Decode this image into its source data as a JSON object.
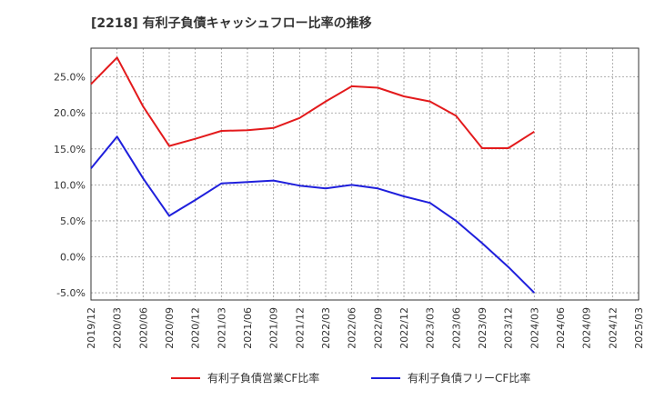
{
  "chart_data": {
    "type": "line",
    "title": "[2218]  有利子負債キャッシュフロー比率の推移",
    "x": [
      "2019/12",
      "2020/03",
      "2020/06",
      "2020/09",
      "2020/12",
      "2021/03",
      "2021/06",
      "2021/09",
      "2021/12",
      "2022/03",
      "2022/06",
      "2022/09",
      "2022/12",
      "2023/03",
      "2023/06",
      "2023/09",
      "2023/12",
      "2024/03",
      "2024/06",
      "2024/09",
      "2024/12",
      "2025/03"
    ],
    "ylim": [
      -6,
      29
    ],
    "yticks": [
      -5,
      0,
      5,
      10,
      15,
      20,
      25
    ],
    "ytick_labels": [
      "-5.0%",
      "0.0%",
      "5.0%",
      "10.0%",
      "15.0%",
      "20.0%",
      "25.0%"
    ],
    "grid": true,
    "legend_position": "bottom",
    "series": [
      {
        "name": "有利子負債営業CF比率",
        "color": "#e31a1c",
        "values": [
          24.0,
          27.7,
          20.9,
          15.4,
          16.4,
          17.5,
          17.6,
          17.9,
          19.3,
          21.6,
          23.7,
          23.5,
          22.3,
          21.6,
          19.6,
          15.1,
          15.1,
          17.4,
          null,
          null,
          null,
          null
        ]
      },
      {
        "name": "有利子負債フリーCF比率",
        "color": "#1f1fdc",
        "values": [
          12.3,
          16.7,
          10.9,
          5.7,
          7.9,
          10.2,
          10.4,
          10.6,
          9.9,
          9.5,
          10.0,
          9.5,
          8.4,
          7.5,
          5.0,
          1.9,
          -1.4,
          -5.0,
          null,
          null,
          null,
          null
        ]
      }
    ]
  }
}
